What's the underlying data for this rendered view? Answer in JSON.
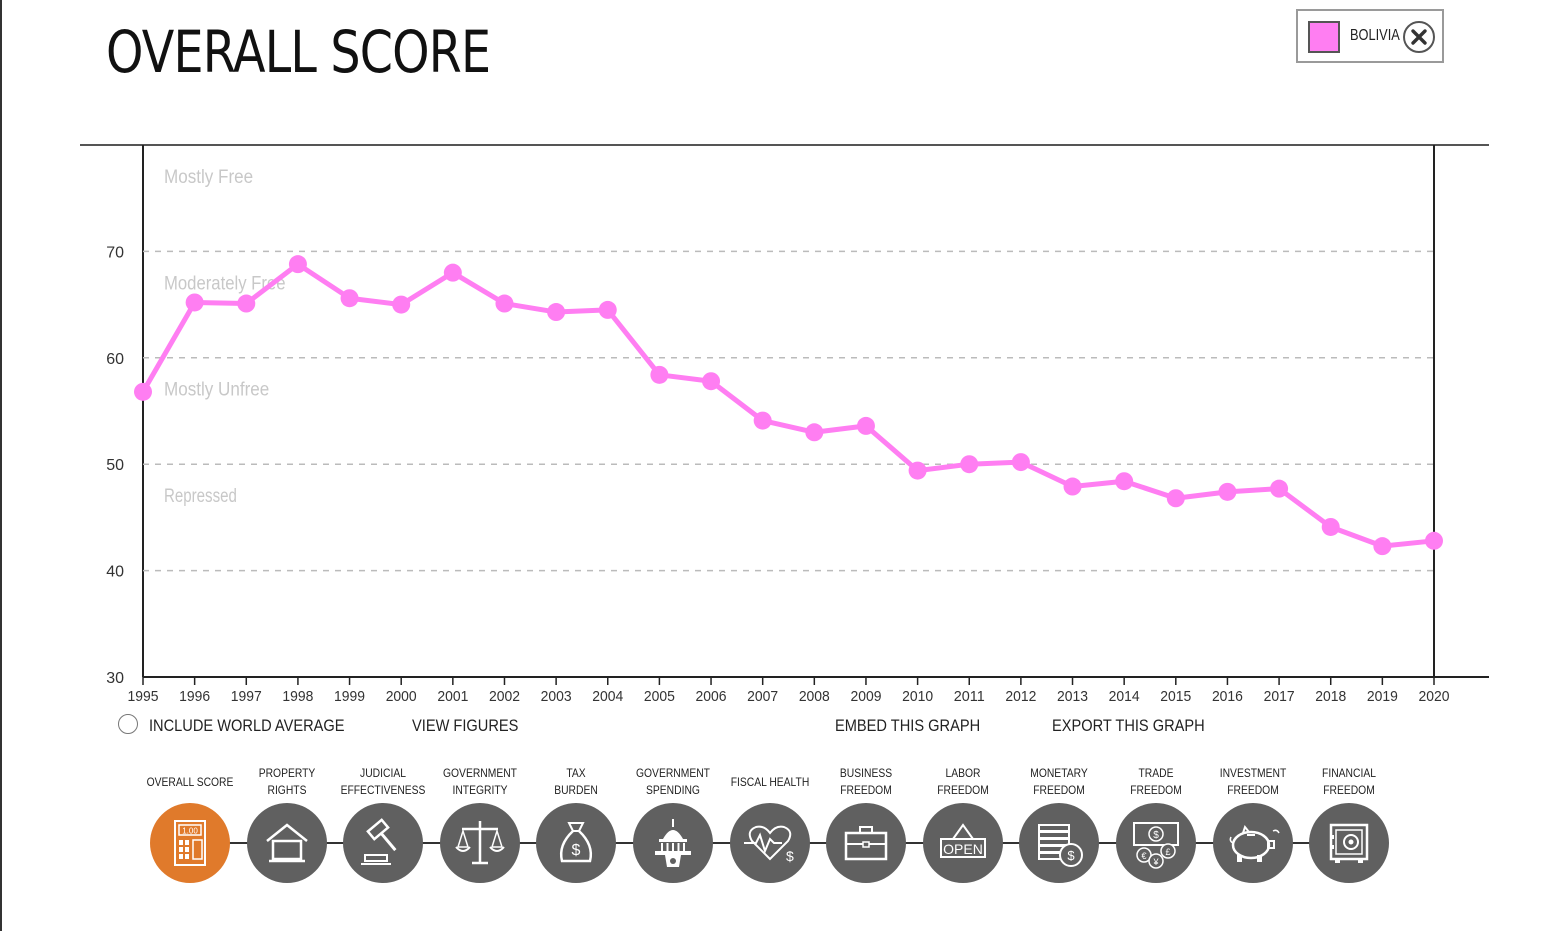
{
  "title": "OVERALL SCORE",
  "legend": {
    "label": "BOLIVIA",
    "color": "#ff7ef2",
    "close_icon": "close-icon"
  },
  "chart_data": {
    "type": "line",
    "x": [
      "1995",
      "1996",
      "1997",
      "1998",
      "1999",
      "2000",
      "2001",
      "2002",
      "2003",
      "2004",
      "2005",
      "2006",
      "2007",
      "2008",
      "2009",
      "2010",
      "2011",
      "2012",
      "2013",
      "2014",
      "2015",
      "2016",
      "2017",
      "2018",
      "2019",
      "2020"
    ],
    "series": [
      {
        "name": "BOLIVIA",
        "color": "#ff7ef2",
        "values": [
          56.8,
          65.2,
          65.1,
          68.8,
          65.6,
          65.0,
          68.0,
          65.1,
          64.3,
          64.5,
          58.4,
          57.8,
          54.1,
          53.0,
          53.6,
          49.4,
          50.0,
          50.2,
          47.9,
          48.4,
          46.8,
          47.4,
          47.7,
          44.1,
          42.3,
          42.8
        ]
      }
    ],
    "ylim": [
      30,
      80
    ],
    "yticks": [
      30,
      40,
      50,
      60,
      70
    ],
    "grid": "dashed horizontal",
    "bands": [
      {
        "label": "Mostly Free",
        "y": 77
      },
      {
        "label": "Moderately Free",
        "y": 67
      },
      {
        "label": "Mostly Unfree",
        "y": 57
      },
      {
        "label": "Repressed",
        "y": 47
      }
    ]
  },
  "controls": {
    "world_average": "INCLUDE WORLD AVERAGE",
    "view_figures": "VIEW FIGURES",
    "embed": "EMBED THIS GRAPH",
    "export": "EXPORT THIS GRAPH"
  },
  "nav": [
    {
      "label": "OVERALL SCORE",
      "icon": "calculator-icon",
      "active": true,
      "calc_display": "1.00"
    },
    {
      "label": "PROPERTY\nRIGHTS",
      "icon": "house-icon"
    },
    {
      "label": "JUDICIAL\nEFFECTIVENESS",
      "icon": "gavel-icon"
    },
    {
      "label": "GOVERNMENT\nINTEGRITY",
      "icon": "scales-icon"
    },
    {
      "label": "TAX\nBURDEN",
      "icon": "money-bag-icon"
    },
    {
      "label": "GOVERNMENT\nSPENDING",
      "icon": "capitol-icon"
    },
    {
      "label": "FISCAL HEALTH",
      "icon": "heartbeat-icon"
    },
    {
      "label": "BUSINESS\nFREEDOM",
      "icon": "briefcase-icon"
    },
    {
      "label": "LABOR\nFREEDOM",
      "icon": "open-sign-icon",
      "sign_text": "OPEN"
    },
    {
      "label": "MONETARY\nFREEDOM",
      "icon": "coin-stack-icon"
    },
    {
      "label": "TRADE\nFREEDOM",
      "icon": "currency-icon"
    },
    {
      "label": "INVESTMENT\nFREEDOM",
      "icon": "piggy-bank-icon"
    },
    {
      "label": "FINANCIAL\nFREEDOM",
      "icon": "safe-icon"
    }
  ]
}
